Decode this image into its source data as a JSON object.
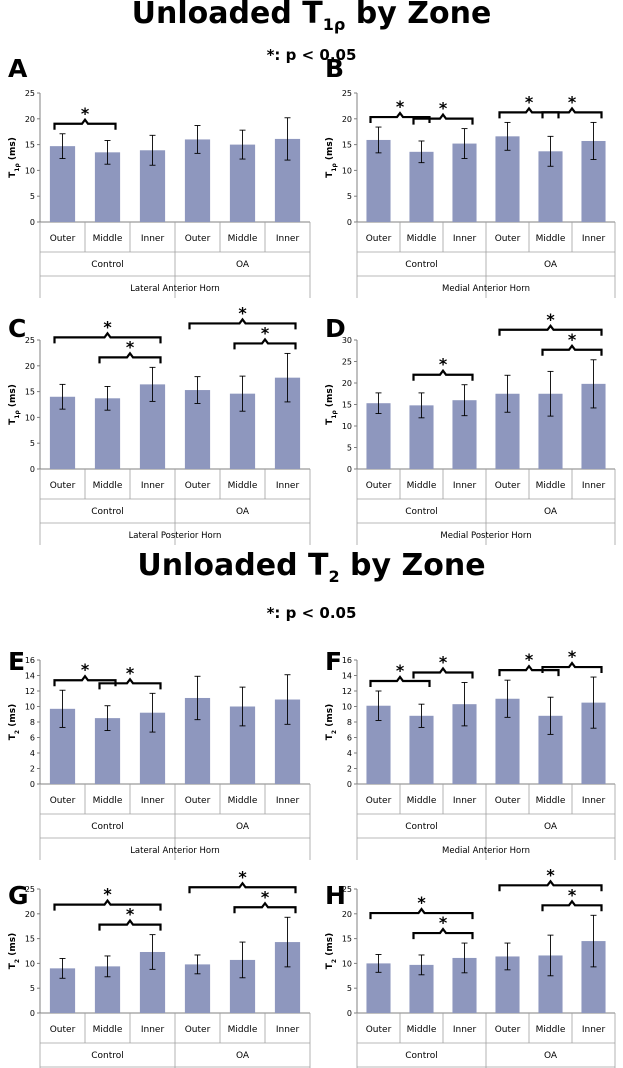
{
  "figure": {
    "title_t1": "Unloaded T",
    "title_t1_sub": "1ρ",
    "title_t1_tail": " by Zone",
    "title_t2": "Unloaded T",
    "title_t2_sub": "2",
    "title_t2_tail": " by Zone",
    "sig_note": "*:  p < 0.05",
    "sig_note_2": "*:  p < 0.05",
    "colors": {
      "bar": "#8e97be",
      "bracket": "#000000"
    }
  },
  "chart_data": [
    {
      "panel": "A",
      "type": "bar",
      "ylabel": "T1ρ (ms)",
      "ylim": [
        0,
        25
      ],
      "ytick_step": 5,
      "categories": [
        "Outer",
        "Middle",
        "Inner",
        "Outer",
        "Middle",
        "Inner"
      ],
      "groups": [
        "Control",
        "OA"
      ],
      "position_label": "Lateral Anterior Horn",
      "values": [
        14.7,
        13.5,
        13.9,
        16.0,
        15.0,
        16.1
      ],
      "errors": [
        2.4,
        2.3,
        2.9,
        2.7,
        2.8,
        4.1
      ],
      "significance": [
        [
          0,
          1
        ]
      ]
    },
    {
      "panel": "B",
      "type": "bar",
      "ylabel": "T1ρ (ms)",
      "ylim": [
        0,
        25
      ],
      "ytick_step": 5,
      "categories": [
        "Outer",
        "Middle",
        "Inner",
        "Outer",
        "Middle",
        "Inner"
      ],
      "groups": [
        "Control",
        "OA"
      ],
      "position_label": "Medial Anterior Horn",
      "values": [
        15.9,
        13.6,
        15.2,
        16.6,
        13.7,
        15.7
      ],
      "errors": [
        2.5,
        2.1,
        2.9,
        2.7,
        2.9,
        3.6
      ],
      "significance": [
        [
          0,
          1
        ],
        [
          1,
          2
        ],
        [
          3,
          4
        ],
        [
          4,
          5
        ]
      ]
    },
    {
      "panel": "C",
      "type": "bar",
      "ylabel": "T1ρ (ms)",
      "ylim": [
        0,
        25
      ],
      "ytick_step": 5,
      "categories": [
        "Outer",
        "Middle",
        "Inner",
        "Outer",
        "Middle",
        "Inner"
      ],
      "groups": [
        "Control",
        "OA"
      ],
      "position_label": "Lateral Posterior Horn",
      "values": [
        14.0,
        13.7,
        16.4,
        15.3,
        14.6,
        17.7
      ],
      "errors": [
        2.4,
        2.3,
        3.3,
        2.6,
        3.4,
        4.7
      ],
      "significance": [
        [
          0,
          2
        ],
        [
          1,
          2
        ],
        [
          3,
          5
        ],
        [
          4,
          5
        ]
      ]
    },
    {
      "panel": "D",
      "type": "bar",
      "ylabel": "T1ρ (ms)",
      "ylim": [
        0,
        30
      ],
      "ytick_step": 5,
      "categories": [
        "Outer",
        "Middle",
        "Inner",
        "Outer",
        "Middle",
        "Inner"
      ],
      "groups": [
        "Control",
        "OA"
      ],
      "position_label": "Medial Posterior Horn",
      "values": [
        15.3,
        14.8,
        16.0,
        17.5,
        17.5,
        19.8
      ],
      "errors": [
        2.4,
        2.9,
        3.6,
        4.3,
        5.2,
        5.6
      ],
      "significance": [
        [
          1,
          2
        ],
        [
          3,
          5
        ],
        [
          4,
          5
        ]
      ]
    },
    {
      "panel": "E",
      "type": "bar",
      "ylabel": "T2 (ms)",
      "ylim": [
        0,
        16
      ],
      "ytick_step": 2,
      "categories": [
        "Outer",
        "Middle",
        "Inner",
        "Outer",
        "Middle",
        "Inner"
      ],
      "groups": [
        "Control",
        "OA"
      ],
      "position_label": "Lateral Anterior Horn",
      "values": [
        9.7,
        8.5,
        9.2,
        11.1,
        10.0,
        10.9
      ],
      "errors": [
        2.4,
        1.6,
        2.5,
        2.8,
        2.5,
        3.2
      ],
      "significance": [
        [
          0,
          1
        ],
        [
          1,
          2
        ]
      ]
    },
    {
      "panel": "F",
      "type": "bar",
      "ylabel": "T2 (ms)",
      "ylim": [
        0,
        16
      ],
      "ytick_step": 2,
      "categories": [
        "Outer",
        "Middle",
        "Inner",
        "Outer",
        "Middle",
        "Inner"
      ],
      "groups": [
        "Control",
        "OA"
      ],
      "position_label": "Medial Anterior Horn",
      "values": [
        10.1,
        8.8,
        10.3,
        11.0,
        8.8,
        10.5
      ],
      "errors": [
        1.9,
        1.5,
        2.8,
        2.4,
        2.4,
        3.3
      ],
      "significance": [
        [
          0,
          1
        ],
        [
          1,
          2
        ],
        [
          3,
          4
        ],
        [
          4,
          5
        ]
      ]
    },
    {
      "panel": "G",
      "type": "bar",
      "ylabel": "T2 (ms)",
      "ylim": [
        0,
        25
      ],
      "ytick_step": 5,
      "categories": [
        "Outer",
        "Middle",
        "Inner",
        "Outer",
        "Middle",
        "Inner"
      ],
      "groups": [
        "Control",
        "OA"
      ],
      "position_label": "Lateral Posterior Horn",
      "values": [
        9.0,
        9.4,
        12.3,
        9.8,
        10.7,
        14.3
      ],
      "errors": [
        2.0,
        2.1,
        3.5,
        1.9,
        3.6,
        5.0
      ],
      "significance": [
        [
          0,
          2
        ],
        [
          1,
          2
        ],
        [
          3,
          5
        ],
        [
          4,
          5
        ]
      ]
    },
    {
      "panel": "H",
      "type": "bar",
      "ylabel": "T2 (ms)",
      "ylim": [
        0,
        25
      ],
      "ytick_step": 5,
      "categories": [
        "Outer",
        "Middle",
        "Inner",
        "Outer",
        "Middle",
        "Inner"
      ],
      "groups": [
        "Control",
        "OA"
      ],
      "position_label": "Medial Posterior Horn",
      "values": [
        10.0,
        9.7,
        11.1,
        11.4,
        11.6,
        14.5
      ],
      "errors": [
        1.8,
        2.0,
        3.0,
        2.7,
        4.1,
        5.2
      ],
      "significance": [
        [
          0,
          2
        ],
        [
          1,
          2
        ],
        [
          3,
          5
        ],
        [
          4,
          5
        ]
      ]
    }
  ]
}
